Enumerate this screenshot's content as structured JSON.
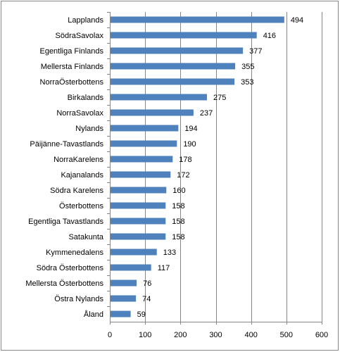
{
  "chart_data": {
    "type": "bar",
    "orientation": "horizontal",
    "categories": [
      "Lapplands",
      "SödraSavolax",
      "Egentliga Finlands",
      "Mellersta Finlands",
      "NorraÖsterbottens",
      "Birkalands",
      "NorraSavolax",
      "Nylands",
      "Päijänne-Tavastlands",
      "NorraKarelens",
      "Kajanalands",
      "Södra Karelens",
      "Österbottens",
      "Egentliga Tavastlands",
      "Satakunta",
      "Kymmenedalens",
      "Södra Österbottens",
      "Mellersta Österbottens",
      "Östra Nylands",
      "Åland"
    ],
    "values": [
      494,
      416,
      377,
      355,
      353,
      275,
      237,
      194,
      190,
      178,
      172,
      160,
      158,
      158,
      158,
      133,
      117,
      76,
      74,
      59
    ],
    "xlim": [
      0,
      600
    ],
    "xticks": [
      0,
      100,
      200,
      300,
      400,
      500,
      600
    ],
    "grid": "vertical",
    "bar_color": "#4F81BD",
    "grid_color": "#868686"
  }
}
